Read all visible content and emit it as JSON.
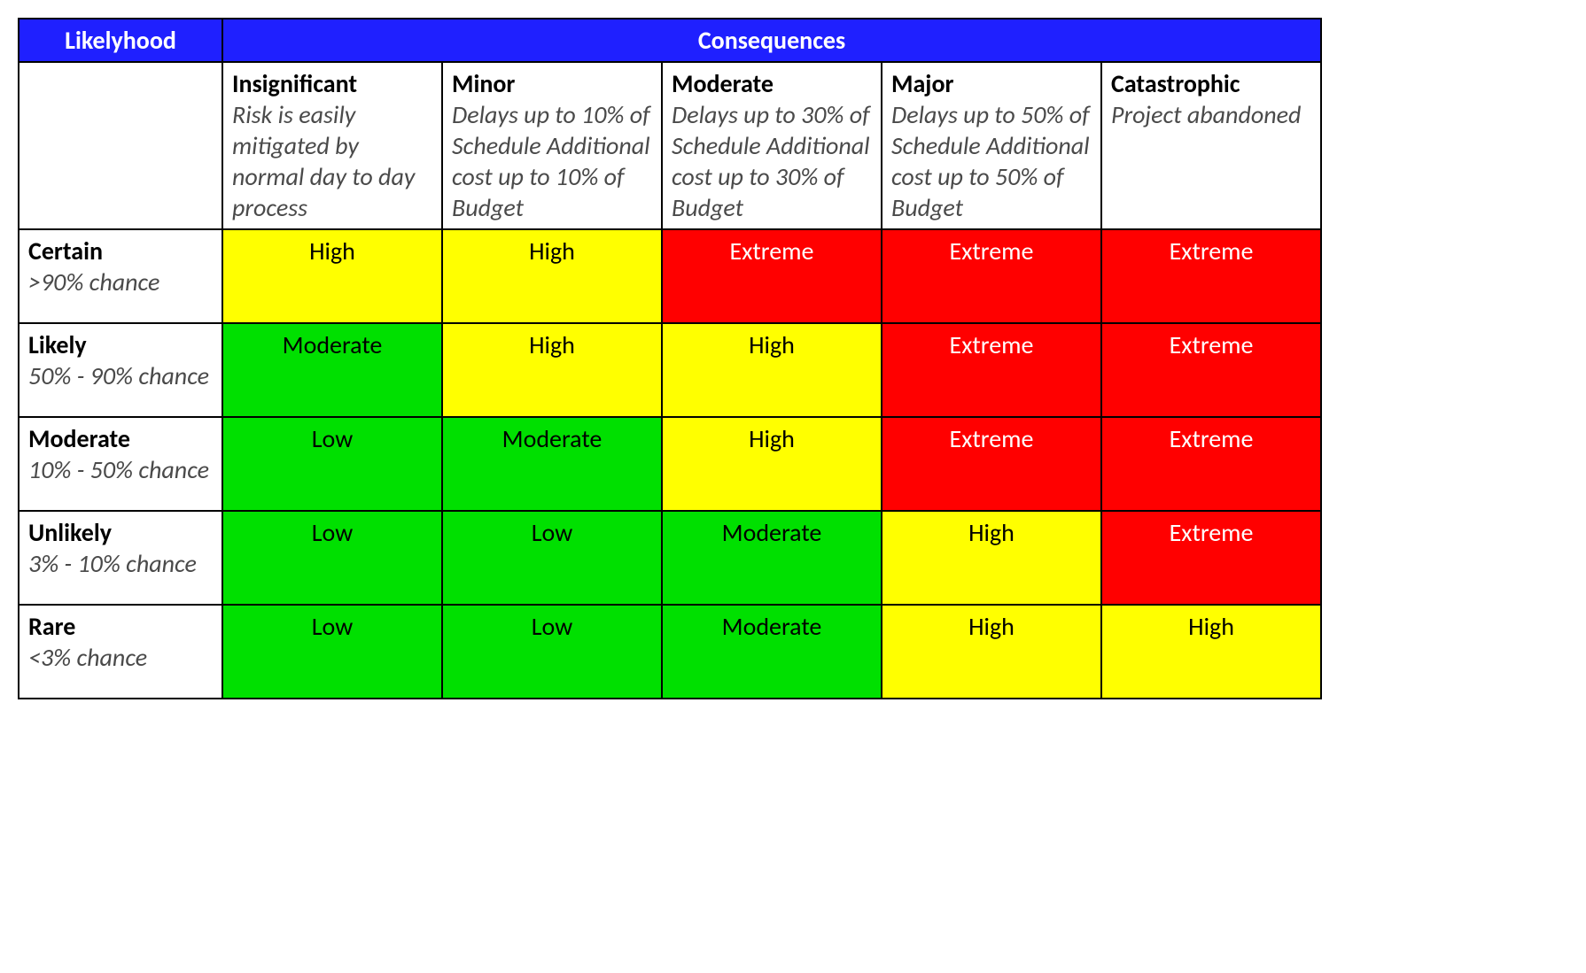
{
  "type": "table",
  "table": {
    "header_bg": "#1f20ff",
    "header_fg": "#ffffff",
    "border_color": "#000000",
    "likelihood_header": "Likelyhood",
    "consequences_header": "Consequences",
    "font_family": "Calibri",
    "cell_fontsize_pt": 21,
    "risk_colors": {
      "Low": {
        "bg": "#00e000",
        "fg": "#000000"
      },
      "Moderate": {
        "bg": "#00e000",
        "fg": "#000000"
      },
      "High": {
        "bg": "#ffff00",
        "fg": "#000000"
      },
      "Extreme": {
        "bg": "#ff0000",
        "fg": "#ffffff"
      }
    },
    "consequences": [
      {
        "title": "Insignificant",
        "desc": "Risk is easily mitigated by normal day to day process"
      },
      {
        "title": "Minor",
        "desc": "Delays up to 10% of Schedule Additional cost up to 10% of Budget"
      },
      {
        "title": "Moderate",
        "desc": "Delays up to 30% of Schedule Additional cost up to 30% of Budget"
      },
      {
        "title": "Major",
        "desc": "Delays up to 50% of Schedule Additional cost up to 50% of Budget"
      },
      {
        "title": "Catastrophic",
        "desc": "Project abandoned"
      }
    ],
    "likelihoods": [
      {
        "title": "Certain",
        "desc": ">90% chance"
      },
      {
        "title": "Likely",
        "desc": "50% - 90% chance"
      },
      {
        "title": "Moderate",
        "desc": "10% - 50% chance"
      },
      {
        "title": "Unlikely",
        "desc": "3% - 10% chance"
      },
      {
        "title": "Rare",
        "desc": "<3% chance"
      }
    ],
    "matrix": [
      [
        "High",
        "High",
        "Extreme",
        "Extreme",
        "Extreme"
      ],
      [
        "Moderate",
        "High",
        "High",
        "Extreme",
        "Extreme"
      ],
      [
        "Low",
        "Moderate",
        "High",
        "Extreme",
        "Extreme"
      ],
      [
        "Low",
        "Low",
        "Moderate",
        "High",
        "Extreme"
      ],
      [
        "Low",
        "Low",
        "Moderate",
        "High",
        "High"
      ]
    ]
  }
}
